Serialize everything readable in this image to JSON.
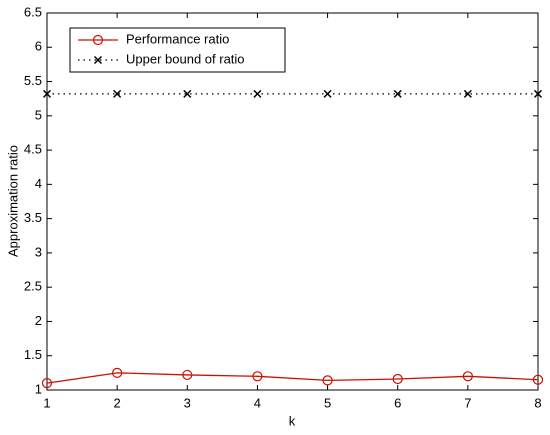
{
  "chart_data": {
    "type": "line",
    "x_label": "k",
    "y_label": "Approximation ratio",
    "x": [
      1,
      2,
      3,
      4,
      5,
      6,
      7,
      8
    ],
    "series": [
      {
        "name": "Performance ratio",
        "color": "#cc1100",
        "marker": "circle",
        "linestyle": "solid",
        "values": [
          1.1,
          1.25,
          1.22,
          1.2,
          1.14,
          1.16,
          1.2,
          1.15
        ]
      },
      {
        "name": "Upper bound of ratio",
        "color": "#000000",
        "marker": "x",
        "linestyle": "dotted",
        "values": [
          5.32,
          5.32,
          5.32,
          5.32,
          5.32,
          5.32,
          5.32,
          5.32
        ]
      }
    ],
    "xlim": [
      1,
      8
    ],
    "xticks": [
      1,
      2,
      3,
      4,
      5,
      6,
      7,
      8
    ],
    "ylim": [
      1,
      6.5
    ],
    "yticks": [
      1,
      1.5,
      2,
      2.5,
      3,
      3.5,
      4,
      4.5,
      5,
      5.5,
      6,
      6.5
    ],
    "legend": "upper-left"
  }
}
